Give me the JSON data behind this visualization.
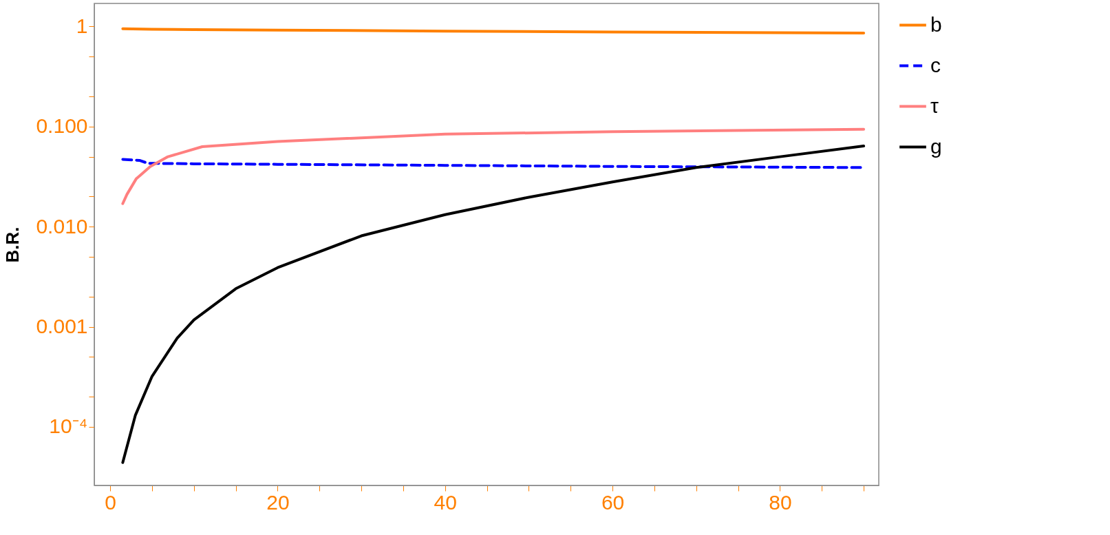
{
  "chart_data": {
    "type": "line",
    "ylabel": "B.R.",
    "log": "y",
    "grid": false,
    "legend": "right",
    "marker": "none",
    "xlim": [
      -1.9,
      91.8
    ],
    "ylim": [
      2.6e-05,
      1.7
    ],
    "xticks": [
      0,
      {
        "value": 5,
        "label": null
      },
      {
        "value": 10,
        "label": null
      },
      {
        "value": 15,
        "label": null
      },
      20,
      {
        "value": 25,
        "label": null
      },
      {
        "value": 30,
        "label": null
      },
      {
        "value": 35,
        "label": null
      },
      40,
      {
        "value": 45,
        "label": null
      },
      {
        "value": 50,
        "label": null
      },
      {
        "value": 55,
        "label": null
      },
      60,
      {
        "value": 65,
        "label": null
      },
      {
        "value": 70,
        "label": null
      },
      {
        "value": 75,
        "label": null
      },
      80,
      {
        "value": 85,
        "label": null
      },
      {
        "value": 90,
        "label": null
      }
    ],
    "yticks": [
      {
        "value": 0.0001,
        "label": "10⁻⁴"
      },
      {
        "value": 0.0002,
        "label": null
      },
      {
        "value": 0.0005,
        "label": null
      },
      {
        "value": 0.001,
        "label": "0.001"
      },
      {
        "value": 0.002,
        "label": null
      },
      {
        "value": 0.005,
        "label": null
      },
      {
        "value": 0.01,
        "label": "0.010"
      },
      {
        "value": 0.02,
        "label": null
      },
      {
        "value": 0.05,
        "label": null
      },
      {
        "value": 0.1,
        "label": "0.100"
      },
      {
        "value": 0.2,
        "label": null
      },
      {
        "value": 0.5,
        "label": null
      },
      1
    ],
    "series": [
      {
        "name": "b",
        "color": "#ff8000",
        "line_style": "solid",
        "x": [
          1.5,
          5,
          10,
          20,
          40,
          60,
          90
        ],
        "values": [
          0.95,
          0.94,
          0.93,
          0.92,
          0.9,
          0.88,
          0.86
        ]
      },
      {
        "name": "c",
        "color": "#0000ff",
        "line_style": "dashed",
        "x": [
          1.5,
          3.5,
          4.5,
          10,
          20,
          40,
          60,
          90
        ],
        "values": [
          0.047,
          0.046,
          0.043,
          0.0425,
          0.042,
          0.041,
          0.04,
          0.039
        ]
      },
      {
        "name": "τ",
        "color": "#ff7f7f",
        "line_style": "solid",
        "x": [
          1.5,
          2,
          3.1,
          4.8,
          6.9,
          11,
          20,
          40,
          60,
          90
        ],
        "values": [
          0.017,
          0.021,
          0.03,
          0.04,
          0.05,
          0.063,
          0.071,
          0.084,
          0.089,
          0.094
        ]
      },
      {
        "name": "g",
        "color": "#000000",
        "line_style": "solid",
        "x": [
          1.5,
          3,
          5,
          8,
          10,
          15,
          20,
          30,
          40,
          50,
          60,
          70,
          80,
          90
        ],
        "values": [
          4.4e-05,
          0.00013,
          0.00032,
          0.00077,
          0.00117,
          0.0024,
          0.0039,
          0.0081,
          0.0132,
          0.0197,
          0.028,
          0.039,
          0.05,
          0.064
        ]
      }
    ]
  }
}
